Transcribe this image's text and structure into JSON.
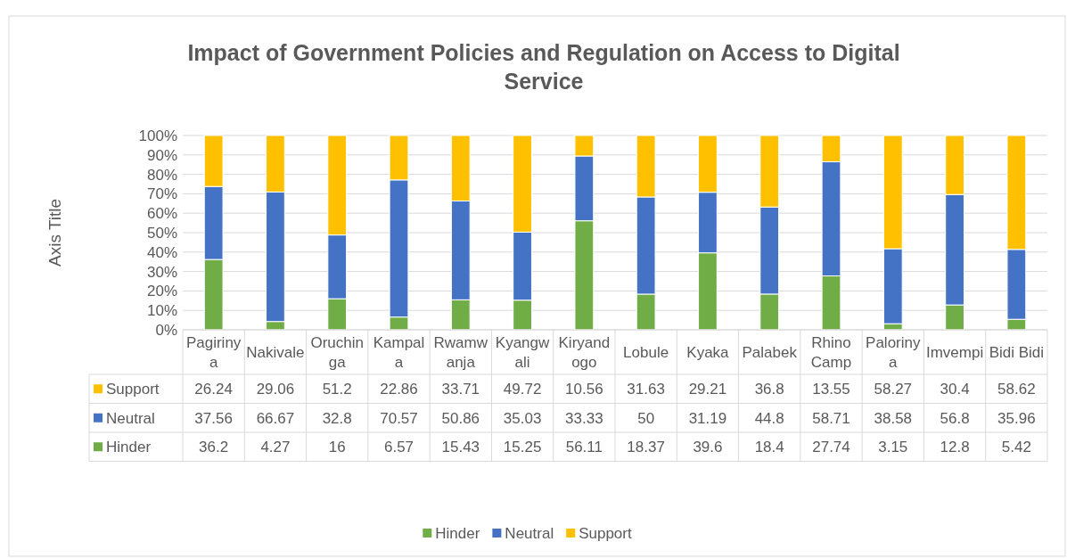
{
  "chart_data": {
    "type": "bar",
    "stacked": true,
    "title": "Impact of Government Policies and Regulation on Access to Digital Service",
    "ylabel": "Axis Title",
    "categories": [
      "Pagirinya",
      "Nakivale",
      "Oruchinga",
      "Kampala",
      "Rwamwanja",
      "Kyangwali",
      "Kiryandogo",
      "Lobule",
      "Kyaka",
      "Palabek",
      "Rhino Camp",
      "Palorinya",
      "Imvempi",
      "Bidi Bidi"
    ],
    "series": [
      {
        "name": "Hinder",
        "color": "#70ad47",
        "values": [
          36.2,
          4.27,
          16,
          6.57,
          15.43,
          15.25,
          56.11,
          18.37,
          39.6,
          18.4,
          27.74,
          3.15,
          12.8,
          5.42
        ]
      },
      {
        "name": "Neutral",
        "color": "#4472c4",
        "values": [
          37.56,
          66.67,
          32.8,
          70.57,
          50.86,
          35.03,
          33.33,
          50,
          31.19,
          44.8,
          58.71,
          38.58,
          56.8,
          35.96
        ]
      },
      {
        "name": "Support",
        "color": "#ffc000",
        "values": [
          26.24,
          29.06,
          51.2,
          22.86,
          33.71,
          49.72,
          10.56,
          31.63,
          29.21,
          36.8,
          13.55,
          58.27,
          30.4,
          58.62
        ]
      }
    ],
    "ylim": [
      0,
      100
    ],
    "yticks": [
      {
        "value": 0,
        "label": "0%"
      },
      {
        "value": 10,
        "label": "10%"
      },
      {
        "value": 20,
        "label": "20%"
      },
      {
        "value": 30,
        "label": "30%"
      },
      {
        "value": 40,
        "label": "40%"
      },
      {
        "value": 50,
        "label": "50%"
      },
      {
        "value": 60,
        "label": "60%"
      },
      {
        "value": 70,
        "label": "70%"
      },
      {
        "value": 80,
        "label": "80%"
      },
      {
        "value": 90,
        "label": "90%"
      },
      {
        "value": 100,
        "label": "100%"
      }
    ],
    "grid": "y",
    "legend": "bottom",
    "data_labels": true
  }
}
